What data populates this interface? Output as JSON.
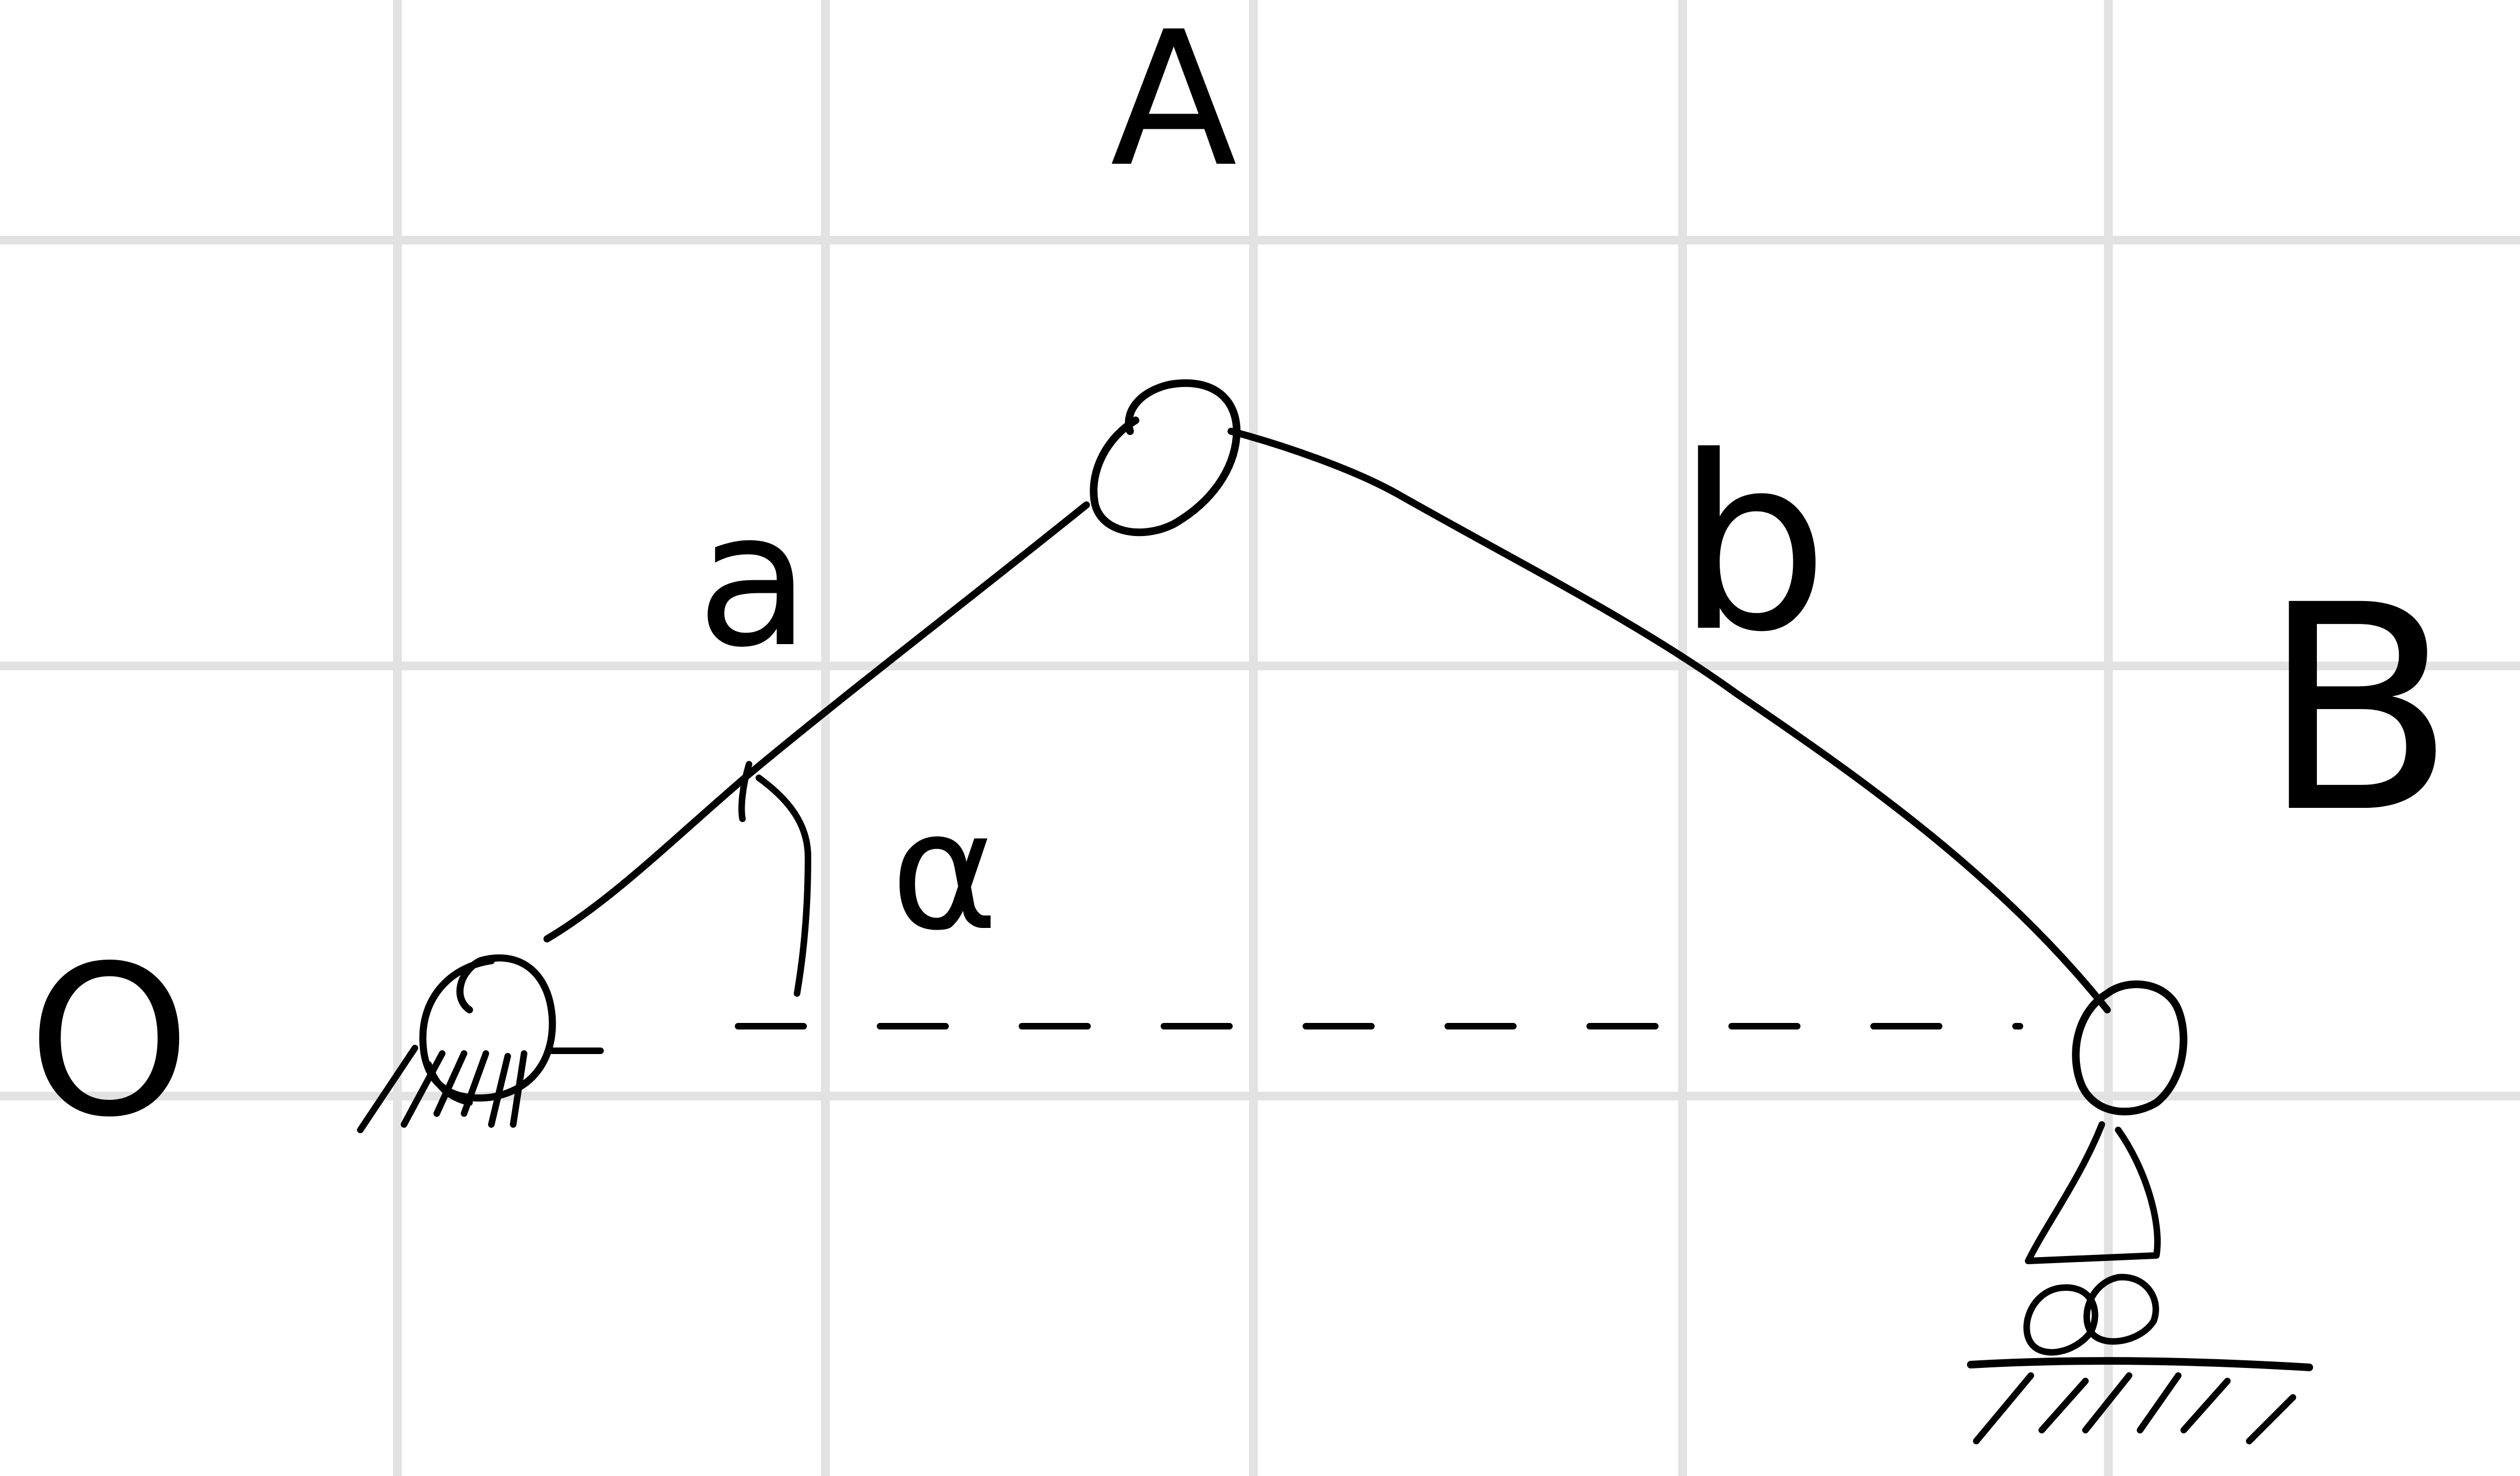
{
  "diagram": {
    "labels": {
      "origin": "O",
      "joint_a": "A",
      "joint_b": "B",
      "link_a": "a",
      "link_b": "b",
      "angle": "α"
    },
    "ink_color": "#000000",
    "grid_color": "#e2e2e2",
    "background": "#ffffff",
    "elements": {
      "fixed_pivot": "ground-hatch",
      "slider_support": "roller-on-ground"
    }
  }
}
